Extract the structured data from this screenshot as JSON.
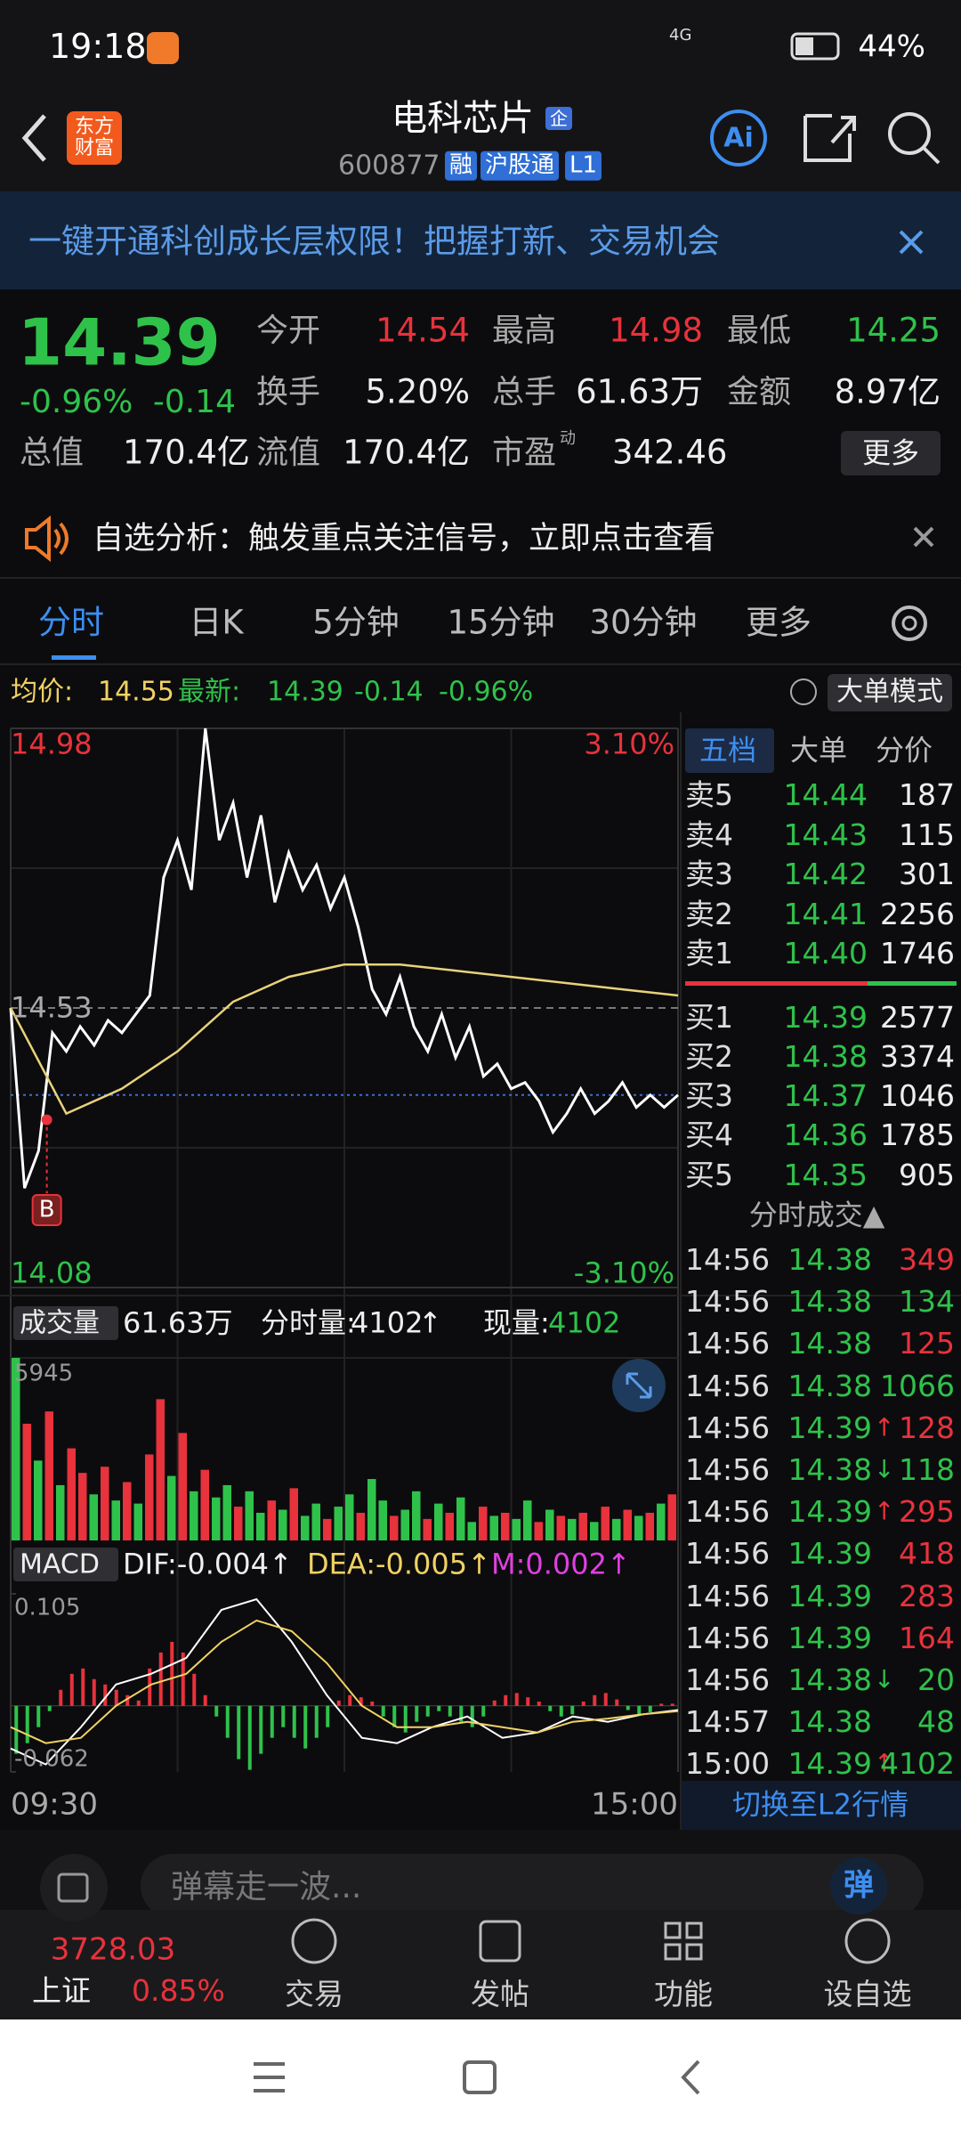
{
  "status_bar": {
    "time": "19:18",
    "network": "4G",
    "battery": "44%"
  },
  "header": {
    "logo": "东方财富",
    "title": "电科芯片",
    "title_badge": "企",
    "code": "600877",
    "tags": [
      "融",
      "沪股通",
      "L1"
    ],
    "ai": "Ai"
  },
  "banner": {
    "text": "一键开通科创成长层权限！把握打新、交易机会"
  },
  "quote": {
    "price": "14.39",
    "change_pct": "-0.96%",
    "change": "-0.14",
    "fields": [
      {
        "label": "今开",
        "value": "14.54",
        "color": "#e8323c"
      },
      {
        "label": "最高",
        "value": "14.98",
        "color": "#e8323c"
      },
      {
        "label": "最低",
        "value": "14.25",
        "color": "#2fc24b"
      },
      {
        "label": "换手",
        "value": "5.20%",
        "color": "#eeeeee"
      },
      {
        "label": "总手",
        "value": "61.63万",
        "color": "#eeeeee"
      },
      {
        "label": "金额",
        "value": "8.97亿",
        "color": "#eeeeee"
      },
      {
        "label": "总值",
        "value": "170.4亿",
        "color": "#eeeeee"
      },
      {
        "label": "流值",
        "value": "170.4亿",
        "color": "#eeeeee"
      },
      {
        "label": "市盈",
        "sup": "动",
        "value": "342.46",
        "color": "#eeeeee"
      }
    ],
    "more": "更多"
  },
  "notice": {
    "text": "自选分析：触发重点关注信号，立即点击查看"
  },
  "tabs": [
    "分时",
    "日K",
    "5分钟",
    "15分钟",
    "30分钟",
    "更多"
  ],
  "info_line": {
    "avg_label": "均价:",
    "avg": "14.55",
    "latest_label": "最新:",
    "latest": "14.39",
    "change": "-0.14",
    "change_pct": "-0.96%",
    "mode": "大单模式"
  },
  "chart_data": [
    {
      "type": "line",
      "ylim": [
        14.08,
        14.98
      ],
      "yticks": [
        14.08,
        14.53,
        14.98
      ],
      "y2lim": [
        -3.1,
        3.1
      ],
      "y2ticks": [
        {
          "value": -3.1,
          "label": "-3.10%"
        },
        {
          "value": 3.1,
          "label": "3.10%"
        }
      ],
      "xlim": [
        0,
        240
      ],
      "xticks": [
        {
          "value": 0,
          "label": "09:30"
        },
        {
          "value": 240,
          "label": "15:00"
        }
      ],
      "grid": true,
      "current_price_line": 14.39,
      "series": [
        {
          "color": "#ffffff",
          "x": [
            0,
            5,
            10,
            15,
            20,
            25,
            30,
            35,
            40,
            45,
            50,
            55,
            60,
            65,
            70,
            75,
            80,
            85,
            90,
            95,
            100,
            105,
            110,
            115,
            120,
            125,
            130,
            135,
            140,
            145,
            150,
            155,
            160,
            165,
            170,
            175,
            180,
            185,
            190,
            195,
            200,
            205,
            210,
            215,
            220,
            225,
            230,
            235,
            240
          ],
          "values": [
            14.53,
            14.24,
            14.3,
            14.49,
            14.46,
            14.5,
            14.47,
            14.51,
            14.49,
            14.52,
            14.55,
            14.74,
            14.8,
            14.72,
            14.98,
            14.8,
            14.86,
            14.74,
            14.84,
            14.7,
            14.78,
            14.72,
            14.76,
            14.69,
            14.74,
            14.66,
            14.56,
            14.52,
            14.58,
            14.5,
            14.46,
            14.52,
            14.45,
            14.5,
            14.42,
            14.44,
            14.4,
            14.41,
            14.38,
            14.33,
            14.36,
            14.4,
            14.36,
            14.38,
            14.41,
            14.37,
            14.39,
            14.37,
            14.39
          ]
        },
        {
          "color": "#e8d27a",
          "x": [
            0,
            20,
            40,
            60,
            80,
            100,
            120,
            140,
            160,
            180,
            200,
            220,
            240
          ],
          "values": [
            14.53,
            14.36,
            14.4,
            14.46,
            14.54,
            14.58,
            14.6,
            14.6,
            14.59,
            14.58,
            14.57,
            14.56,
            14.55
          ]
        }
      ],
      "annotations": [
        {
          "text": "B",
          "x": 13,
          "y": 14.35
        }
      ]
    },
    {
      "type": "bar",
      "label": "成交量",
      "total": "61.63万",
      "period_label": "分时量:",
      "period_value": "4102",
      "period_arrow": "↑",
      "current_label": "现量:",
      "current_value": "4102",
      "ylim": [
        0,
        5945
      ],
      "yticks": [
        5945
      ],
      "values": [
        5945,
        3800,
        2600,
        4200,
        1800,
        3000,
        2200,
        1500,
        2400,
        1300,
        1900,
        1200,
        2800,
        4600,
        2100,
        3500,
        1600,
        2300,
        1400,
        1800,
        1100,
        1600,
        900,
        1300,
        1000,
        1700,
        800,
        1200,
        700,
        1100,
        1500,
        900,
        2000,
        1300,
        800,
        1000,
        1600,
        700,
        1200,
        900,
        1400,
        600,
        1100,
        800,
        900,
        700,
        1300,
        600,
        1000,
        800,
        700,
        900,
        600,
        1100,
        700,
        1000,
        800,
        900,
        1200,
        1500
      ],
      "colors": [
        "#2fc24b",
        "#e8323c",
        "#2fc24b",
        "#e8323c",
        "#2fc24b",
        "#e8323c",
        "#e8323c",
        "#2fc24b",
        "#e8323c",
        "#2fc24b",
        "#e8323c",
        "#2fc24b",
        "#e8323c",
        "#e8323c",
        "#2fc24b",
        "#e8323c",
        "#2fc24b",
        "#e8323c",
        "#2fc24b",
        "#2fc24b",
        "#e8323c",
        "#2fc24b",
        "#2fc24b",
        "#e8323c",
        "#2fc24b",
        "#e8323c",
        "#2fc24b",
        "#2fc24b",
        "#e8323c",
        "#2fc24b",
        "#2fc24b",
        "#e8323c",
        "#2fc24b",
        "#2fc24b",
        "#e8323c",
        "#2fc24b",
        "#2fc24b",
        "#e8323c",
        "#2fc24b",
        "#e8323c",
        "#2fc24b",
        "#2fc24b",
        "#e8323c",
        "#2fc24b",
        "#e8323c",
        "#2fc24b",
        "#2fc24b",
        "#e8323c",
        "#2fc24b",
        "#e8323c",
        "#2fc24b",
        "#e8323c",
        "#2fc24b",
        "#e8323c",
        "#2fc24b",
        "#e8323c",
        "#2fc24b",
        "#e8323c",
        "#2fc24b",
        "#e8323c"
      ]
    },
    {
      "type": "macd",
      "label": "MACD",
      "dif_label": "DIF:-0.004↑",
      "dea_label": "DEA:-0.005↑",
      "m_label": "M:0.002↑",
      "ylim": [
        -0.062,
        0.105
      ],
      "yticks": [
        -0.062,
        0.105
      ],
      "up_color": "#e8323c",
      "down_color": "#2fc24b",
      "values": [
        -0.045,
        -0.035,
        -0.02,
        -0.005,
        0.015,
        0.03,
        0.035,
        0.025,
        0.02,
        0.015,
        0.01,
        0.005,
        0.035,
        0.05,
        0.06,
        0.05,
        0.03,
        0.01,
        -0.01,
        -0.03,
        -0.05,
        -0.06,
        -0.045,
        -0.03,
        -0.02,
        -0.03,
        -0.04,
        -0.03,
        -0.02,
        0.005,
        0.01,
        0.008,
        0.004,
        -0.01,
        -0.02,
        -0.025,
        -0.015,
        -0.01,
        -0.005,
        -0.01,
        -0.015,
        -0.02,
        -0.01,
        0.005,
        0.01,
        0.012,
        0.008,
        0.004,
        -0.005,
        -0.01,
        -0.008,
        0.004,
        0.01,
        0.012,
        0.006,
        -0.004,
        -0.008,
        -0.006,
        0.002,
        0.002
      ],
      "series": [
        {
          "color": "#ffffff",
          "values": [
            -0.04,
            -0.055,
            -0.02,
            0.02,
            0.03,
            0.045,
            0.09,
            0.1,
            0.06,
            0.01,
            -0.03,
            -0.035,
            -0.02,
            -0.01,
            -0.03,
            -0.025,
            -0.01,
            -0.015,
            -0.008,
            -0.004
          ]
        },
        {
          "color": "#f0d264",
          "values": [
            -0.02,
            -0.035,
            -0.03,
            0.0,
            0.02,
            0.03,
            0.06,
            0.08,
            0.07,
            0.04,
            0.0,
            -0.02,
            -0.02,
            -0.015,
            -0.02,
            -0.025,
            -0.015,
            -0.012,
            -0.008,
            -0.005
          ]
        }
      ]
    }
  ],
  "order_book": {
    "tabs": [
      "五档",
      "大单",
      "分价"
    ],
    "asks": [
      {
        "label": "卖5",
        "price": "14.44",
        "volume": "187"
      },
      {
        "label": "卖4",
        "price": "14.43",
        "volume": "115"
      },
      {
        "label": "卖3",
        "price": "14.42",
        "volume": "301"
      },
      {
        "label": "卖2",
        "price": "14.41",
        "volume": "2256"
      },
      {
        "label": "卖1",
        "price": "14.40",
        "volume": "1746"
      }
    ],
    "bids": [
      {
        "label": "买1",
        "price": "14.39",
        "volume": "2577"
      },
      {
        "label": "买2",
        "price": "14.38",
        "volume": "3374"
      },
      {
        "label": "买3",
        "price": "14.37",
        "volume": "1046"
      },
      {
        "label": "买4",
        "price": "14.36",
        "volume": "1785"
      },
      {
        "label": "买5",
        "price": "14.35",
        "volume": "905"
      }
    ]
  },
  "trades": {
    "title": "分时成交▲",
    "rows": [
      {
        "time": "14:56",
        "price": "14.38",
        "volume": "349",
        "color": "#e8323c"
      },
      {
        "time": "14:56",
        "price": "14.38",
        "volume": "134",
        "color": "#2fc24b"
      },
      {
        "time": "14:56",
        "price": "14.38",
        "volume": "125",
        "color": "#e8323c"
      },
      {
        "time": "14:56",
        "price": "14.38",
        "volume": "1066",
        "color": "#2fc24b"
      },
      {
        "time": "14:56",
        "price": "14.39",
        "arrow": "↑",
        "volume": "128",
        "color": "#e8323c"
      },
      {
        "time": "14:56",
        "price": "14.38",
        "arrow": "↓",
        "volume": "118",
        "color": "#2fc24b"
      },
      {
        "time": "14:56",
        "price": "14.39",
        "arrow": "↑",
        "volume": "295",
        "color": "#e8323c"
      },
      {
        "time": "14:56",
        "price": "14.39",
        "volume": "418",
        "color": "#e8323c"
      },
      {
        "time": "14:56",
        "price": "14.39",
        "volume": "283",
        "color": "#e8323c"
      },
      {
        "time": "14:56",
        "price": "14.39",
        "volume": "164",
        "color": "#e8323c"
      },
      {
        "time": "14:56",
        "price": "14.38",
        "arrow": "↓",
        "volume": "20",
        "color": "#2fc24b"
      },
      {
        "time": "14:57",
        "price": "14.38",
        "volume": "48",
        "color": "#2fc24b"
      },
      {
        "time": "15:00",
        "price": "14.39",
        "arrow": "↑",
        "volume": "4102",
        "color": "#2fc24b"
      }
    ],
    "switch": "切换至L2行情"
  },
  "comment": {
    "placeholder": "弹幕走一波...",
    "button": "弹"
  },
  "bottom_nav": {
    "index_value": "3728.03",
    "index_name": "上证",
    "index_change": "0.85%",
    "items": [
      "交易",
      "发帖",
      "功能",
      "设自选"
    ]
  }
}
